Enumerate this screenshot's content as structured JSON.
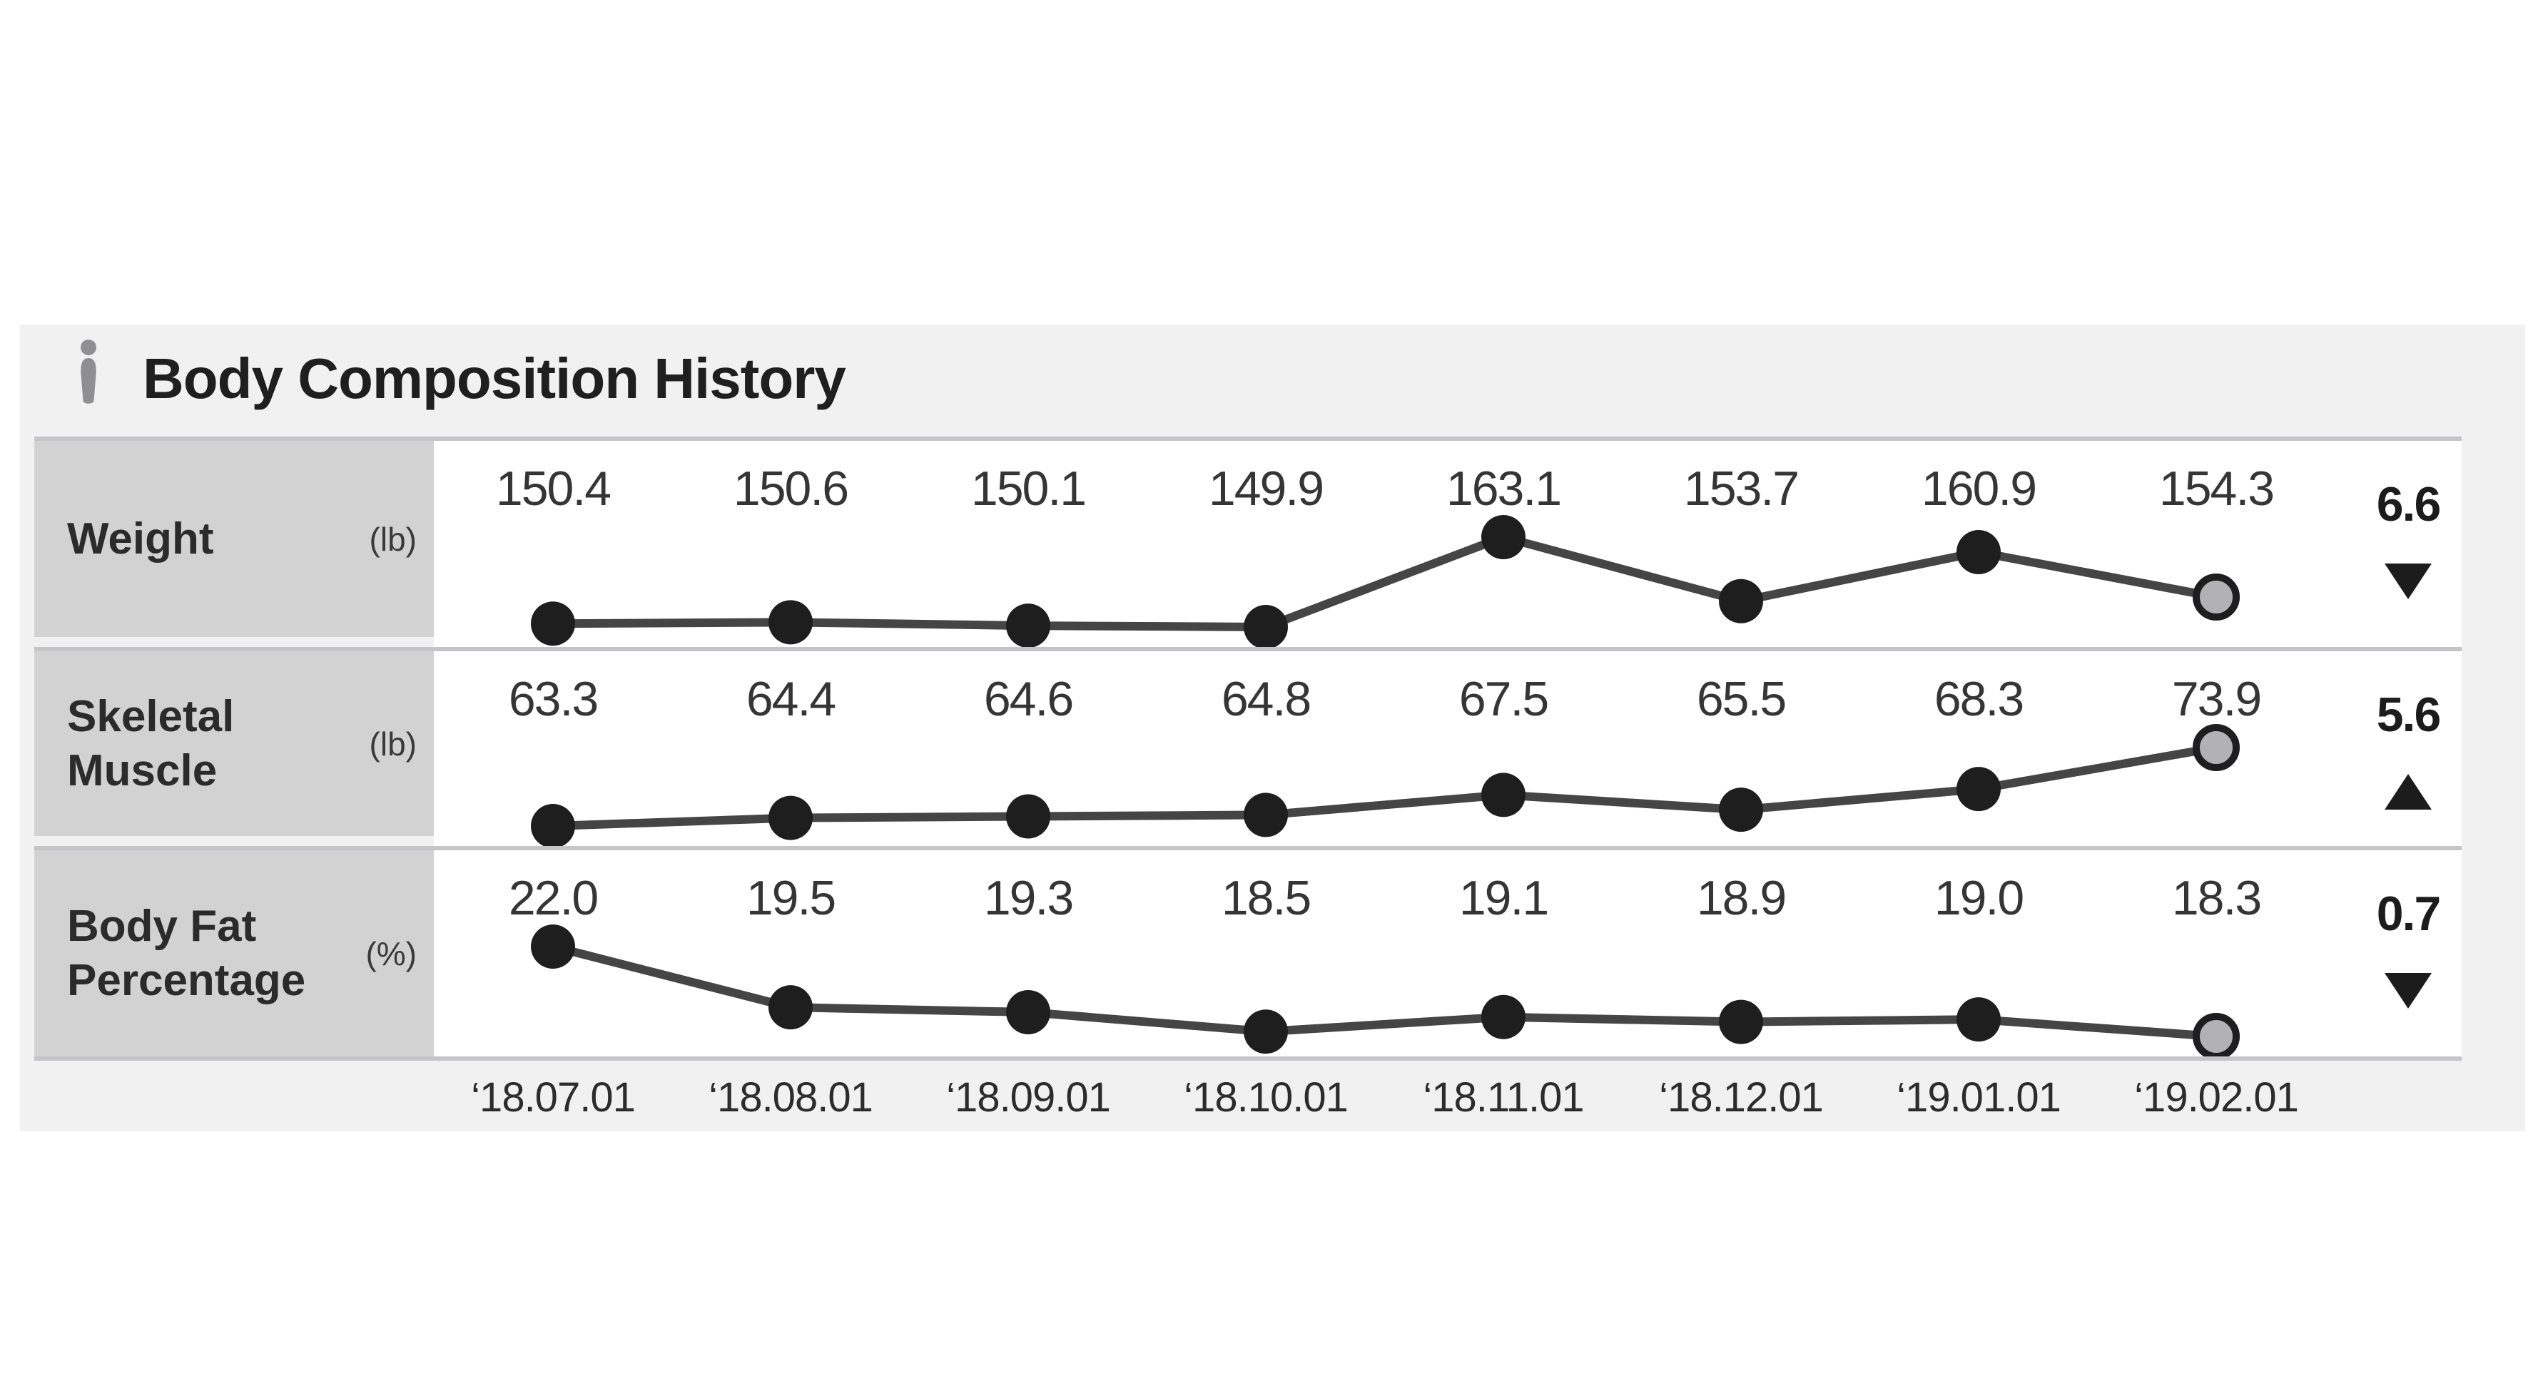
{
  "panel": {
    "title": "Body Composition History",
    "icon": "person-icon"
  },
  "colors": {
    "page_bg": "#ffffff",
    "panel_bg": "#f1f1f2",
    "label_cell_bg": "#d2d2d3",
    "divider": "#c5c5c7",
    "chart_bg": "#ffffff",
    "line": "#454545",
    "marker": "#1e1e1e",
    "last_marker_fill": "#b2b2b4",
    "last_marker_ring": "#1e1e1e",
    "value_text": "#353535",
    "change_text": "#1c1c1c",
    "date_text": "#2c2c2c",
    "title_text": "#1f1f1f",
    "icon_gray": "#8f8f92"
  },
  "chart_data": {
    "type": "line",
    "title": "Body Composition History",
    "categories": [
      "‘18.07.01",
      "‘18.08.01",
      "‘18.09.01",
      "‘18.10.01",
      "‘18.11.01",
      "‘18.12.01",
      "‘19.01.01",
      "‘19.02.01"
    ],
    "series": [
      {
        "name": "Weight",
        "unit": "(lb)",
        "values": [
          150.4,
          150.6,
          150.1,
          149.9,
          163.1,
          153.7,
          160.9,
          154.3
        ],
        "change": {
          "value": "6.6",
          "direction": "down"
        }
      },
      {
        "name": "Skeletal Muscle",
        "unit": "(lb)",
        "values": [
          63.3,
          64.4,
          64.6,
          64.8,
          67.5,
          65.5,
          68.3,
          73.9
        ],
        "change": {
          "value": "5.6",
          "direction": "up"
        }
      },
      {
        "name": "Body Fat Percentage",
        "unit": "(%)",
        "values": [
          22.0,
          19.5,
          19.3,
          18.5,
          19.1,
          18.9,
          19.0,
          18.3
        ],
        "change": {
          "value": "0.7",
          "direction": "down"
        }
      }
    ],
    "xlabel": "",
    "ylabel": "",
    "grid": false,
    "legend_position": "none",
    "last_point_highlighted": true
  }
}
